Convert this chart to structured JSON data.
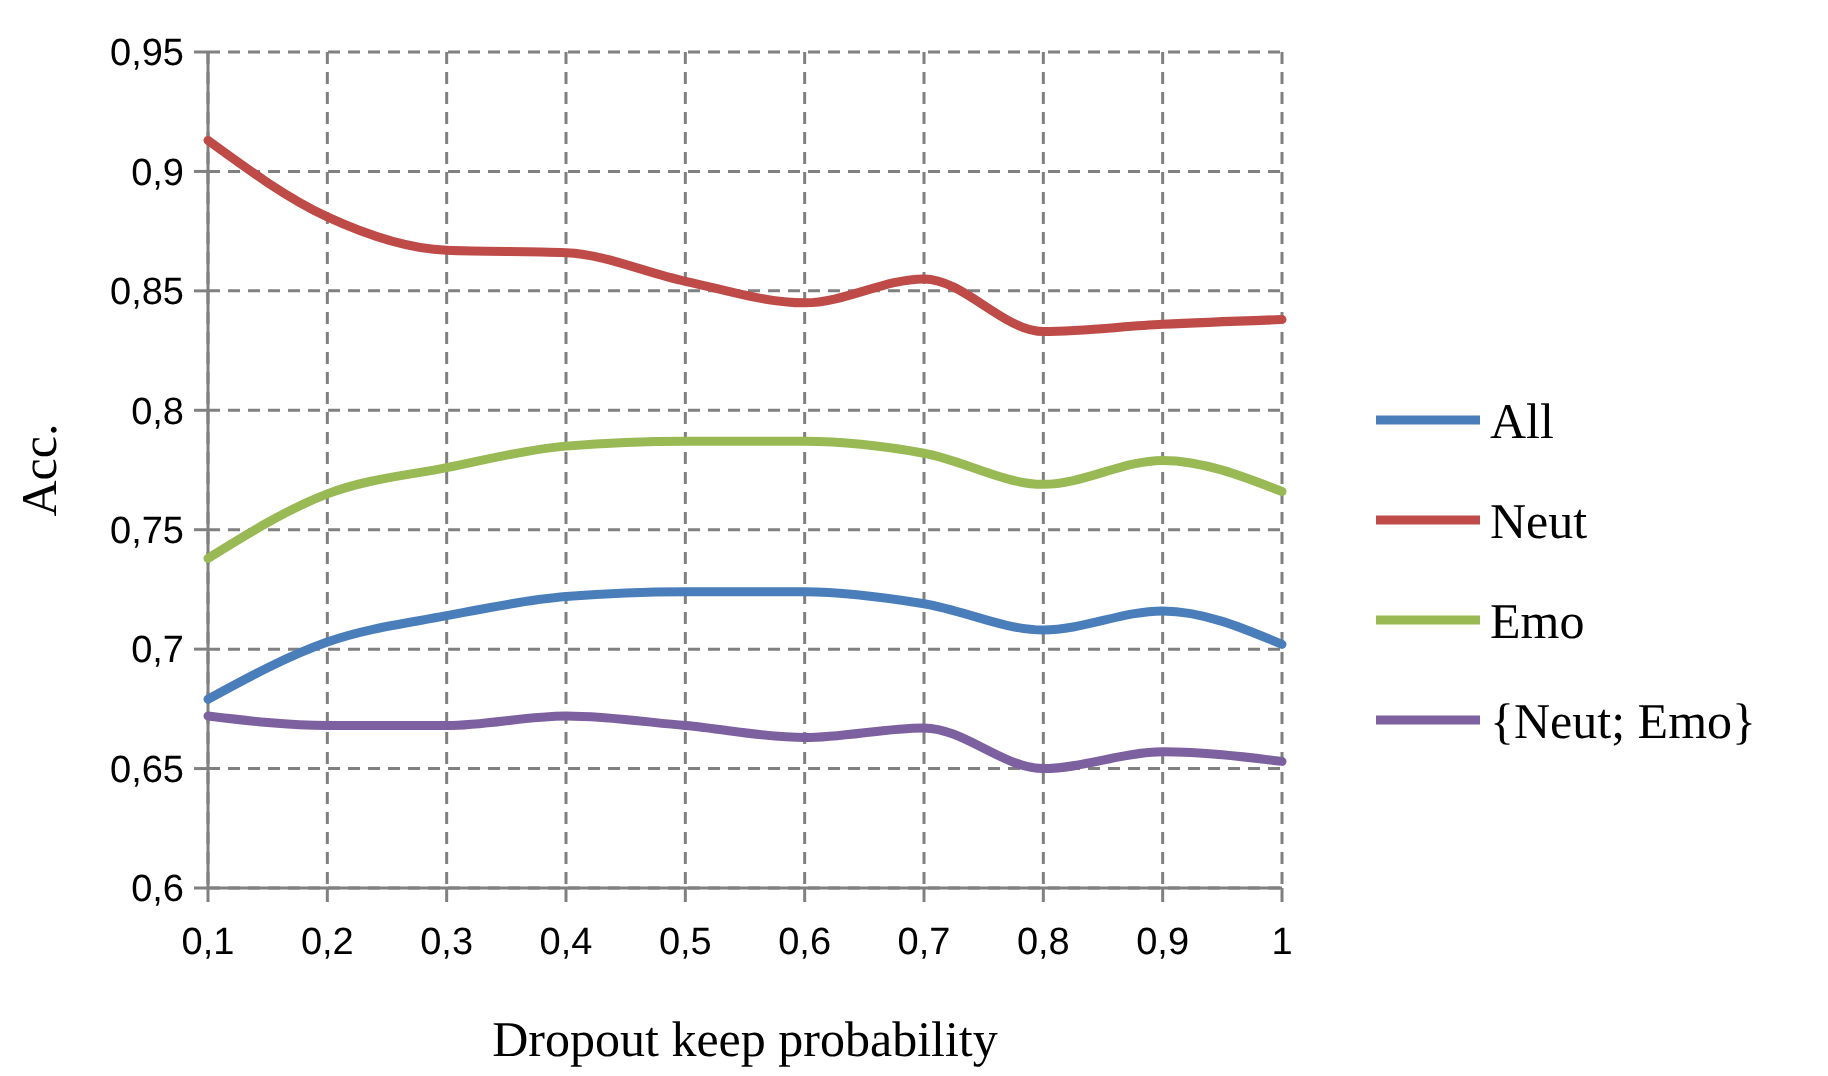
{
  "chart_data": {
    "type": "line",
    "xlabel": "Dropout keep probability",
    "ylabel": "Acc.",
    "x": [
      0.1,
      0.2,
      0.3,
      0.4,
      0.5,
      0.6,
      0.7,
      0.8,
      0.9,
      1
    ],
    "xlim": [
      0.1,
      1
    ],
    "xticks": [
      {
        "value": 0.1,
        "label": "0,1"
      },
      {
        "value": 0.2,
        "label": "0,2"
      },
      {
        "value": 0.3,
        "label": "0,3"
      },
      {
        "value": 0.4,
        "label": "0,4"
      },
      {
        "value": 0.5,
        "label": "0,5"
      },
      {
        "value": 0.6,
        "label": "0,6"
      },
      {
        "value": 0.7,
        "label": "0,7"
      },
      {
        "value": 0.8,
        "label": "0,8"
      },
      {
        "value": 0.9,
        "label": "0,9"
      },
      1
    ],
    "ylim": [
      0.6,
      0.95
    ],
    "yticks": [
      {
        "value": 0.6,
        "label": "0,6"
      },
      {
        "value": 0.65,
        "label": "0,65"
      },
      {
        "value": 0.7,
        "label": "0,7"
      },
      {
        "value": 0.75,
        "label": "0,75"
      },
      {
        "value": 0.8,
        "label": "0,8"
      },
      {
        "value": 0.85,
        "label": "0,85"
      },
      {
        "value": 0.9,
        "label": "0,9"
      },
      {
        "value": 0.95,
        "label": "0,95"
      }
    ],
    "grid": true,
    "legend": "right",
    "marker": "none",
    "line_style": "solid",
    "series": [
      {
        "name": "All",
        "color": "#4a7ebb",
        "values": [
          0.679,
          0.703,
          0.714,
          0.722,
          0.724,
          0.724,
          0.719,
          0.708,
          0.716,
          0.702
        ]
      },
      {
        "name": "Neut",
        "color": "#be4b48",
        "values": [
          0.913,
          0.881,
          0.867,
          0.866,
          0.854,
          0.845,
          0.855,
          0.833,
          0.836,
          0.838
        ]
      },
      {
        "name": "Emo",
        "color": "#98b954",
        "values": [
          0.738,
          0.765,
          0.776,
          0.785,
          0.787,
          0.787,
          0.782,
          0.769,
          0.779,
          0.766
        ]
      },
      {
        "name": "{Neut; Emo}",
        "color": "#7d60a0",
        "values": [
          0.672,
          0.668,
          0.668,
          0.672,
          0.668,
          0.663,
          0.667,
          0.65,
          0.657,
          0.653
        ]
      }
    ]
  }
}
